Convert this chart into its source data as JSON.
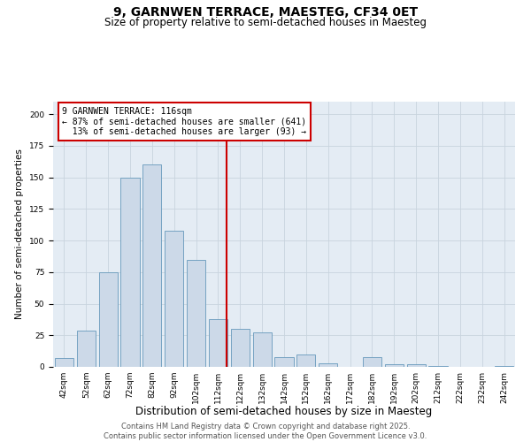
{
  "title": "9, GARNWEN TERRACE, MAESTEG, CF34 0ET",
  "subtitle": "Size of property relative to semi-detached houses in Maesteg",
  "xlabel": "Distribution of semi-detached houses by size in Maesteg",
  "ylabel": "Number of semi-detached properties",
  "bin_labels": [
    "42sqm",
    "52sqm",
    "62sqm",
    "72sqm",
    "82sqm",
    "92sqm",
    "102sqm",
    "112sqm",
    "122sqm",
    "132sqm",
    "142sqm",
    "152sqm",
    "162sqm",
    "172sqm",
    "182sqm",
    "192sqm",
    "202sqm",
    "212sqm",
    "222sqm",
    "232sqm",
    "242sqm"
  ],
  "bar_values": [
    7,
    29,
    75,
    150,
    160,
    108,
    85,
    38,
    30,
    27,
    8,
    10,
    3,
    0,
    8,
    2,
    2,
    1,
    0,
    0,
    1
  ],
  "bar_color": "#ccd9e8",
  "bar_edge_color": "#6699bb",
  "grid_color": "#c8d4de",
  "bg_color": "#e4ecf4",
  "vline_color": "#cc0000",
  "annotation_line1": "9 GARNWEN TERRACE: 116sqm",
  "annotation_line2": "← 87% of semi-detached houses are smaller (641)",
  "annotation_line3": "  13% of semi-detached houses are larger (93) →",
  "footer_line1": "Contains HM Land Registry data © Crown copyright and database right 2025.",
  "footer_line2": "Contains public sector information licensed under the Open Government Licence v3.0.",
  "ylim": [
    0,
    210
  ],
  "title_fontsize": 10,
  "subtitle_fontsize": 8.5,
  "xlabel_fontsize": 8.5,
  "ylabel_fontsize": 7.5,
  "tick_fontsize": 6.5,
  "annotation_fontsize": 7,
  "footer_fontsize": 6
}
